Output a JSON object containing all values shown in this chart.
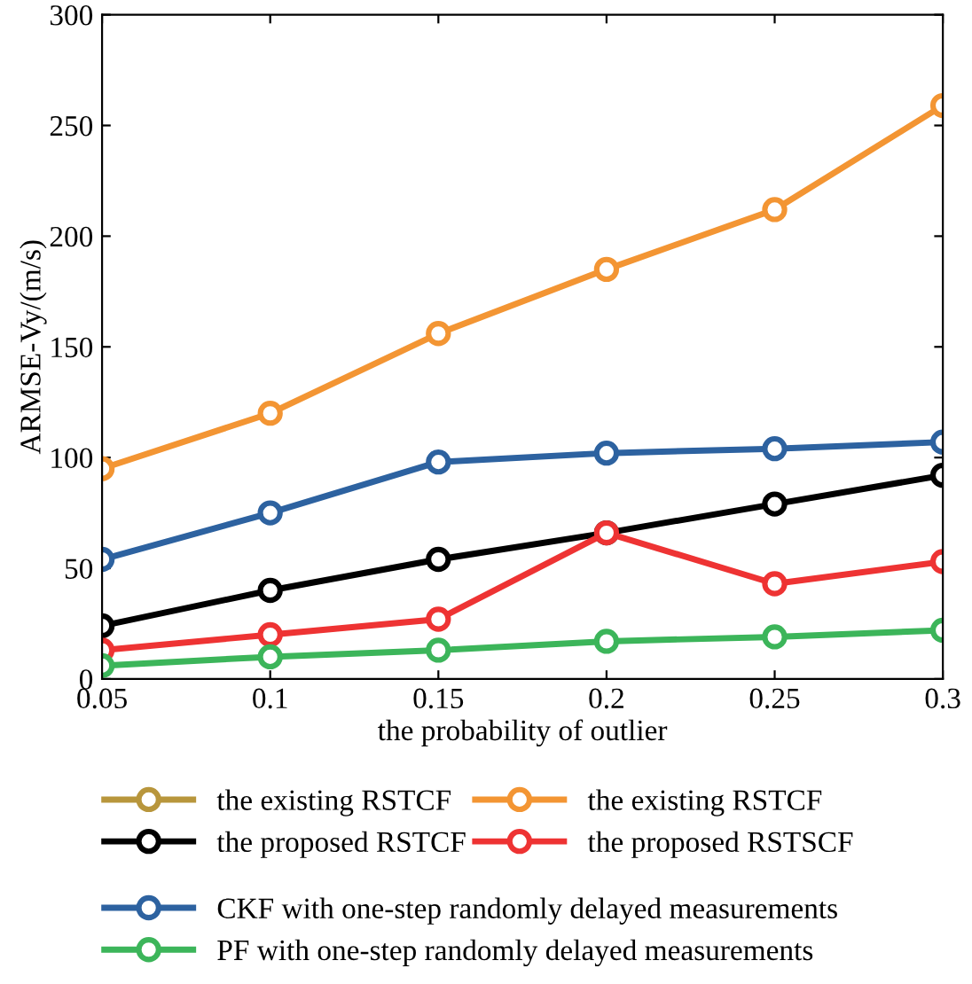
{
  "chart_data": {
    "type": "line",
    "xlabel": "the probability of outlier",
    "ylabel": "ARMSE-Vy/(m/s)",
    "x": [
      0.05,
      0.1,
      0.15,
      0.2,
      0.25,
      0.3
    ],
    "xlim": [
      0.05,
      0.3
    ],
    "xticks": [
      0.05,
      0.1,
      0.15,
      0.2,
      0.25,
      0.3
    ],
    "ylim": [
      0,
      300
    ],
    "yticks": [
      0,
      50,
      100,
      150,
      200,
      250,
      300
    ],
    "grid": false,
    "legend": "bottom",
    "marker": "circle",
    "line_style": "solid",
    "series": [
      {
        "name": "the existing RSTCF",
        "color": "#b8963c",
        "values": [
          null,
          null,
          null,
          null,
          null,
          null
        ]
      },
      {
        "name": "the existing RSTCF",
        "color": "#f39533",
        "values": [
          95,
          120,
          156,
          185,
          212,
          259
        ]
      },
      {
        "name": "the proposed RSTCF",
        "color": "#000000",
        "values": [
          24,
          40,
          54,
          66,
          79,
          92
        ]
      },
      {
        "name": "the proposed RSTSCF",
        "color": "#ee3333",
        "values": [
          13,
          20,
          27,
          66,
          43,
          53
        ]
      },
      {
        "name": "CKF with one-step randomly delayed measurements",
        "color": "#2d62a0",
        "values": [
          54,
          75,
          98,
          102,
          104,
          107
        ]
      },
      {
        "name": "PF with one-step randomly delayed measurements",
        "color": "#3cb55a",
        "values": [
          6,
          10,
          13,
          17,
          19,
          22
        ]
      }
    ]
  }
}
